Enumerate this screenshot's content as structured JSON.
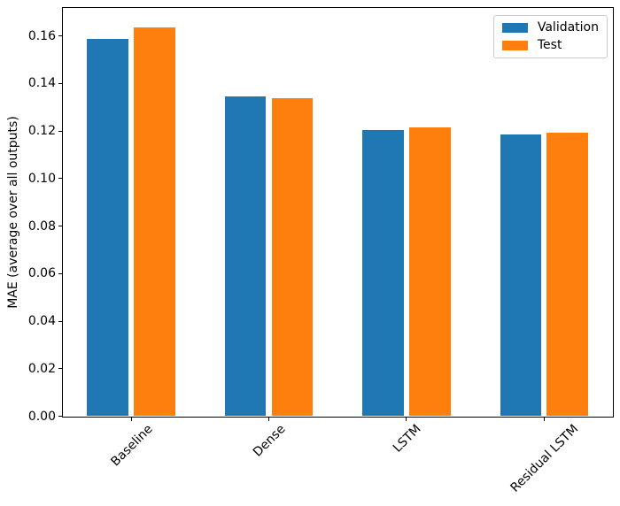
{
  "chart_data": {
    "type": "bar",
    "categories": [
      "Baseline",
      "Dense",
      "LSTM",
      "Residual LSTM"
    ],
    "series": [
      {
        "name": "Validation",
        "color": "#1f77b4",
        "values": [
          0.1589,
          0.1344,
          0.1205,
          0.1186
        ]
      },
      {
        "name": "Test",
        "color": "#ff7f0e",
        "values": [
          0.1638,
          0.1337,
          0.1214,
          0.1194
        ]
      }
    ],
    "title": "",
    "xlabel": "",
    "ylabel": "MAE (average over all outputs)",
    "ylim": [
      0,
      0.172
    ],
    "yticks": [
      0.0,
      0.02,
      0.04,
      0.06,
      0.08,
      0.1,
      0.12,
      0.14,
      0.16
    ],
    "ytick_labels": [
      "0.00",
      "0.02",
      "0.04",
      "0.06",
      "0.08",
      "0.10",
      "0.12",
      "0.14",
      "0.16"
    ],
    "xtick_rotation_deg": 45,
    "grid": false,
    "legend_position": "upper right",
    "bar_width_units": 0.3,
    "bar_offset_units": 0.17
  }
}
